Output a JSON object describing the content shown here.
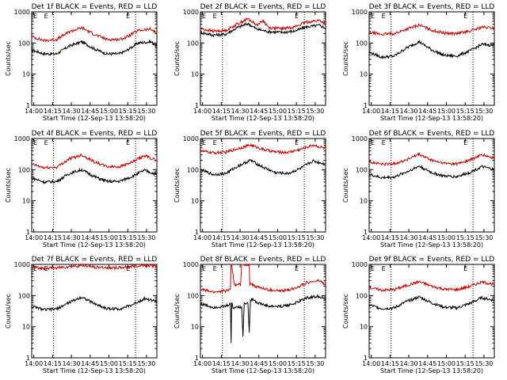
{
  "figure": {
    "background": "#ffffff",
    "events_color": "#000000",
    "lld_color": "#d00000"
  },
  "chart_data": [
    {
      "type": "line",
      "title": "Det 1f BLACK = Events, RED = LLD",
      "xlabel": "Start Time (12-Sep-13 13:58:20)",
      "ylabel": "Counts/sec",
      "y_log": true,
      "ylim": [
        1,
        1000
      ],
      "y_ticks": [
        "1",
        "10",
        "100",
        "1000"
      ],
      "x_range_min": [
        0,
        100
      ],
      "x_ticks": [
        {
          "min": 1.7,
          "label": "14:00"
        },
        {
          "min": 16.7,
          "label": "14:15"
        },
        {
          "min": 31.7,
          "label": "14:30"
        },
        {
          "min": 46.7,
          "label": "14:45"
        },
        {
          "min": 61.7,
          "label": "15:00"
        },
        {
          "min": 76.7,
          "label": "15:15"
        },
        {
          "min": 91.7,
          "label": "15:30"
        }
      ],
      "markers": [
        {
          "min": 17.5,
          "label": "E"
        },
        {
          "min": 83,
          "label": "E"
        }
      ],
      "series": [
        {
          "name": "Events",
          "color": "#000000",
          "x": [
            0,
            10,
            20,
            30,
            40,
            50,
            60,
            70,
            75,
            85,
            95,
            100
          ],
          "y": [
            60,
            45,
            45,
            80,
            110,
            65,
            45,
            45,
            55,
            100,
            110,
            80
          ]
        },
        {
          "name": "LLD",
          "color": "#d00000",
          "x": [
            0,
            10,
            20,
            30,
            40,
            50,
            60,
            70,
            75,
            85,
            95,
            100
          ],
          "y": [
            160,
            120,
            130,
            230,
            310,
            190,
            130,
            130,
            150,
            250,
            280,
            210
          ]
        }
      ]
    },
    {
      "type": "line",
      "title": "Det 2f BLACK = Events, RED = LLD",
      "xlabel": "Start Time (12-Sep-13 13:58:20)",
      "ylabel": "Counts/sec",
      "y_log": true,
      "ylim": [
        1,
        1000
      ],
      "y_ticks": [
        "1",
        "10",
        "100",
        "1000"
      ],
      "x_range_min": [
        0,
        100
      ],
      "x_ticks": [
        {
          "min": 1.7,
          "label": "14:00"
        },
        {
          "min": 16.7,
          "label": "14:15"
        },
        {
          "min": 31.7,
          "label": "14:30"
        },
        {
          "min": 46.7,
          "label": "14:45"
        },
        {
          "min": 61.7,
          "label": "15:00"
        },
        {
          "min": 76.7,
          "label": "15:15"
        },
        {
          "min": 91.7,
          "label": "15:30"
        }
      ],
      "markers": [
        {
          "min": 17.5,
          "label": "E"
        },
        {
          "min": 83,
          "label": "E"
        }
      ],
      "series": [
        {
          "name": "Events",
          "color": "#000000",
          "x": [
            0,
            10,
            20,
            30,
            38,
            45,
            55,
            65,
            75,
            85,
            95,
            100
          ],
          "y": [
            220,
            180,
            190,
            320,
            420,
            280,
            230,
            220,
            240,
            330,
            370,
            300
          ]
        },
        {
          "name": "LLD",
          "color": "#d00000",
          "x": [
            0,
            10,
            20,
            30,
            38,
            45,
            50,
            55,
            65,
            75,
            85,
            95,
            100
          ],
          "y": [
            290,
            240,
            250,
            420,
            600,
            380,
            520,
            310,
            290,
            330,
            470,
            530,
            420
          ]
        }
      ]
    },
    {
      "type": "line",
      "title": "Det 3f BLACK = Events, RED = LLD",
      "xlabel": "Start Time (12-Sep-13 13:58:20)",
      "ylabel": "Counts/sec",
      "y_log": true,
      "ylim": [
        1,
        1000
      ],
      "y_ticks": [
        "1",
        "10",
        "100",
        "1000"
      ],
      "x_range_min": [
        0,
        100
      ],
      "x_ticks": [
        {
          "min": 1.7,
          "label": "14:00"
        },
        {
          "min": 16.7,
          "label": "14:15"
        },
        {
          "min": 31.7,
          "label": "14:30"
        },
        {
          "min": 46.7,
          "label": "14:45"
        },
        {
          "min": 61.7,
          "label": "15:00"
        },
        {
          "min": 76.7,
          "label": "15:15"
        },
        {
          "min": 91.7,
          "label": "15:30"
        }
      ],
      "markers": [
        {
          "min": 17.5,
          "label": "E"
        },
        {
          "min": 83,
          "label": "E"
        }
      ],
      "series": [
        {
          "name": "Events",
          "color": "#000000",
          "x": [
            0,
            10,
            20,
            30,
            40,
            50,
            60,
            70,
            80,
            90,
            100
          ],
          "y": [
            50,
            35,
            38,
            70,
            110,
            60,
            40,
            38,
            55,
            90,
            85
          ]
        },
        {
          "name": "LLD",
          "color": "#d00000",
          "x": [
            0,
            10,
            20,
            30,
            40,
            50,
            60,
            70,
            80,
            90,
            100
          ],
          "y": [
            220,
            190,
            200,
            280,
            380,
            260,
            210,
            200,
            240,
            320,
            300
          ]
        }
      ]
    },
    {
      "type": "line",
      "title": "Det 4f BLACK = Events, RED = LLD",
      "xlabel": "Start Time (12-Sep-13 13:58:20)",
      "ylabel": "Counts/sec",
      "y_log": true,
      "ylim": [
        1,
        1000
      ],
      "y_ticks": [
        "1",
        "10",
        "100",
        "1000"
      ],
      "x_range_min": [
        0,
        100
      ],
      "x_ticks": [
        {
          "min": 1.7,
          "label": "14:00"
        },
        {
          "min": 16.7,
          "label": "14:15"
        },
        {
          "min": 31.7,
          "label": "14:30"
        },
        {
          "min": 46.7,
          "label": "14:45"
        },
        {
          "min": 61.7,
          "label": "15:00"
        },
        {
          "min": 76.7,
          "label": "15:15"
        },
        {
          "min": 91.7,
          "label": "15:30"
        }
      ],
      "markers": [
        {
          "min": 17.5,
          "label": "E"
        },
        {
          "min": 83,
          "label": "E"
        }
      ],
      "series": [
        {
          "name": "Events",
          "color": "#000000",
          "x": [
            0,
            10,
            20,
            30,
            40,
            50,
            60,
            70,
            80,
            90,
            100
          ],
          "y": [
            55,
            40,
            42,
            75,
            100,
            60,
            42,
            42,
            60,
            95,
            70
          ]
        },
        {
          "name": "LLD",
          "color": "#d00000",
          "x": [
            0,
            10,
            20,
            30,
            40,
            50,
            60,
            70,
            80,
            90,
            100
          ],
          "y": [
            150,
            115,
            120,
            220,
            300,
            180,
            125,
            125,
            170,
            280,
            200
          ]
        }
      ]
    },
    {
      "type": "line",
      "title": "Det 5f BLACK = Events, RED = LLD",
      "xlabel": "Start Time (12-Sep-13 13:58:20)",
      "ylabel": "Counts/sec",
      "y_log": true,
      "ylim": [
        1,
        1000
      ],
      "y_ticks": [
        "1",
        "10",
        "100",
        "1000"
      ],
      "x_range_min": [
        0,
        100
      ],
      "x_ticks": [
        {
          "min": 1.7,
          "label": "14:00"
        },
        {
          "min": 16.7,
          "label": "14:15"
        },
        {
          "min": 31.7,
          "label": "14:30"
        },
        {
          "min": 46.7,
          "label": "14:45"
        },
        {
          "min": 61.7,
          "label": "15:00"
        },
        {
          "min": 76.7,
          "label": "15:15"
        },
        {
          "min": 91.7,
          "label": "15:30"
        }
      ],
      "markers": [
        {
          "min": 17.5,
          "label": "E"
        },
        {
          "min": 83,
          "label": "E"
        }
      ],
      "series": [
        {
          "name": "Events",
          "color": "#000000",
          "x": [
            0,
            10,
            20,
            30,
            40,
            50,
            60,
            70,
            80,
            90,
            100
          ],
          "y": [
            100,
            70,
            75,
            130,
            200,
            120,
            80,
            75,
            110,
            190,
            150
          ]
        },
        {
          "name": "LLD",
          "color": "#d00000",
          "x": [
            0,
            10,
            20,
            30,
            40,
            50,
            60,
            70,
            80,
            90,
            100
          ],
          "y": [
            400,
            350,
            360,
            480,
            620,
            450,
            370,
            360,
            450,
            620,
            480
          ]
        }
      ]
    },
    {
      "type": "line",
      "title": "Det 6f BLACK = Events, RED = LLD",
      "xlabel": "Start Time (12-Sep-13 13:58:20)",
      "ylabel": "Counts/sec",
      "y_log": true,
      "ylim": [
        1,
        1000
      ],
      "y_ticks": [
        "1",
        "10",
        "100",
        "1000"
      ],
      "x_range_min": [
        0,
        100
      ],
      "x_ticks": [
        {
          "min": 1.7,
          "label": "14:00"
        },
        {
          "min": 16.7,
          "label": "14:15"
        },
        {
          "min": 31.7,
          "label": "14:30"
        },
        {
          "min": 46.7,
          "label": "14:45"
        },
        {
          "min": 61.7,
          "label": "15:00"
        },
        {
          "min": 76.7,
          "label": "15:15"
        },
        {
          "min": 91.7,
          "label": "15:30"
        }
      ],
      "markers": [
        {
          "min": 17.5,
          "label": "E"
        },
        {
          "min": 83,
          "label": "E"
        }
      ],
      "series": [
        {
          "name": "Events",
          "color": "#000000",
          "x": [
            0,
            10,
            20,
            30,
            40,
            50,
            60,
            70,
            80,
            90,
            100
          ],
          "y": [
            70,
            55,
            58,
            85,
            130,
            80,
            62,
            60,
            80,
            125,
            100
          ]
        },
        {
          "name": "LLD",
          "color": "#d00000",
          "x": [
            0,
            10,
            20,
            30,
            40,
            50,
            60,
            70,
            80,
            90,
            100
          ],
          "y": [
            180,
            150,
            155,
            210,
            310,
            200,
            160,
            155,
            200,
            300,
            230
          ]
        }
      ]
    },
    {
      "type": "line",
      "title": "Det 7f BLACK = Events, RED = LLD",
      "xlabel": "Start Time (12-Sep-13 13:58:20)",
      "ylabel": "Counts/sec",
      "y_log": true,
      "ylim": [
        1,
        1000
      ],
      "y_ticks": [
        "1",
        "10",
        "100",
        "1000"
      ],
      "x_range_min": [
        0,
        100
      ],
      "x_ticks": [
        {
          "min": 1.7,
          "label": "14:00"
        },
        {
          "min": 16.7,
          "label": "14:15"
        },
        {
          "min": 31.7,
          "label": "14:30"
        },
        {
          "min": 46.7,
          "label": "14:45"
        },
        {
          "min": 61.7,
          "label": "15:00"
        },
        {
          "min": 76.7,
          "label": "15:15"
        },
        {
          "min": 91.7,
          "label": "15:30"
        }
      ],
      "markers": [
        {
          "min": 17.5,
          "label": "E"
        },
        {
          "min": 83,
          "label": "E"
        }
      ],
      "series": [
        {
          "name": "Events",
          "color": "#000000",
          "x": [
            0,
            10,
            20,
            30,
            40,
            50,
            60,
            70,
            80,
            90,
            100
          ],
          "y": [
            45,
            35,
            37,
            60,
            90,
            55,
            38,
            37,
            50,
            80,
            65
          ]
        },
        {
          "name": "LLD",
          "color": "#d00000",
          "x": [
            0,
            10,
            20,
            30,
            40,
            50,
            60,
            70,
            80,
            90,
            100
          ],
          "y": [
            800,
            750,
            780,
            850,
            920,
            830,
            790,
            780,
            860,
            950,
            880
          ]
        }
      ]
    },
    {
      "type": "line",
      "title": "Det 8f BLACK = Events, RED = LLD",
      "xlabel": "Start Time (12-Sep-13 13:58:20)",
      "ylabel": "Counts/sec",
      "y_log": true,
      "ylim": [
        1,
        1000
      ],
      "y_ticks": [
        "1",
        "10",
        "100",
        "1000"
      ],
      "x_range_min": [
        0,
        100
      ],
      "x_ticks": [
        {
          "min": 1.7,
          "label": "14:00"
        },
        {
          "min": 16.7,
          "label": "14:15"
        },
        {
          "min": 31.7,
          "label": "14:30"
        },
        {
          "min": 46.7,
          "label": "14:45"
        },
        {
          "min": 61.7,
          "label": "15:00"
        },
        {
          "min": 76.7,
          "label": "15:15"
        },
        {
          "min": 91.7,
          "label": "15:30"
        }
      ],
      "markers": [
        {
          "min": 17.5,
          "label": "E"
        },
        {
          "min": 83,
          "label": "E"
        }
      ],
      "series": [
        {
          "name": "Events",
          "color": "#000000",
          "x": [
            0,
            10,
            20,
            24,
            24.5,
            25,
            26,
            30,
            33,
            34,
            35,
            38,
            39,
            40,
            42,
            45,
            55,
            65,
            75,
            85,
            95,
            100
          ],
          "y": [
            55,
            42,
            45,
            55,
            3,
            60,
            40,
            45,
            40,
            5,
            60,
            55,
            7,
            70,
            80,
            60,
            45,
            45,
            55,
            85,
            95,
            75
          ]
        },
        {
          "name": "LLD",
          "color": "#d00000",
          "x": [
            0,
            10,
            20,
            24,
            24.5,
            25,
            27,
            30,
            32,
            33,
            33.5,
            34,
            36,
            39,
            39.5,
            40,
            45,
            55,
            65,
            75,
            85,
            95,
            100
          ],
          "y": [
            160,
            130,
            140,
            160,
            1000,
            1000,
            220,
            230,
            220,
            1000,
            1000,
            1000,
            1000,
            1000,
            210,
            250,
            190,
            150,
            140,
            170,
            260,
            300,
            220
          ]
        }
      ]
    },
    {
      "type": "line",
      "title": "Det 9f BLACK = Events, RED = LLD",
      "xlabel": "Start Time (12-Sep-13 13:58:20)",
      "ylabel": "Counts/sec",
      "y_log": true,
      "ylim": [
        1,
        1000
      ],
      "y_ticks": [
        "1",
        "10",
        "100",
        "1000"
      ],
      "x_range_min": [
        0,
        100
      ],
      "x_ticks": [
        {
          "min": 1.7,
          "label": "14:00"
        },
        {
          "min": 16.7,
          "label": "14:15"
        },
        {
          "min": 31.7,
          "label": "14:30"
        },
        {
          "min": 46.7,
          "label": "14:45"
        },
        {
          "min": 61.7,
          "label": "15:00"
        },
        {
          "min": 76.7,
          "label": "15:15"
        },
        {
          "min": 91.7,
          "label": "15:30"
        }
      ],
      "markers": [
        {
          "min": 17.5,
          "label": "E"
        },
        {
          "min": 83,
          "label": "E"
        }
      ],
      "series": [
        {
          "name": "Events",
          "color": "#000000",
          "x": [
            0,
            10,
            20,
            30,
            40,
            50,
            60,
            70,
            80,
            90,
            100
          ],
          "y": [
            50,
            38,
            40,
            65,
            90,
            58,
            42,
            40,
            55,
            85,
            70
          ]
        },
        {
          "name": "LLD",
          "color": "#d00000",
          "x": [
            0,
            10,
            20,
            30,
            40,
            50,
            60,
            70,
            80,
            90,
            100
          ],
          "y": [
            180,
            150,
            155,
            210,
            280,
            200,
            160,
            155,
            195,
            270,
            230
          ]
        }
      ]
    }
  ]
}
